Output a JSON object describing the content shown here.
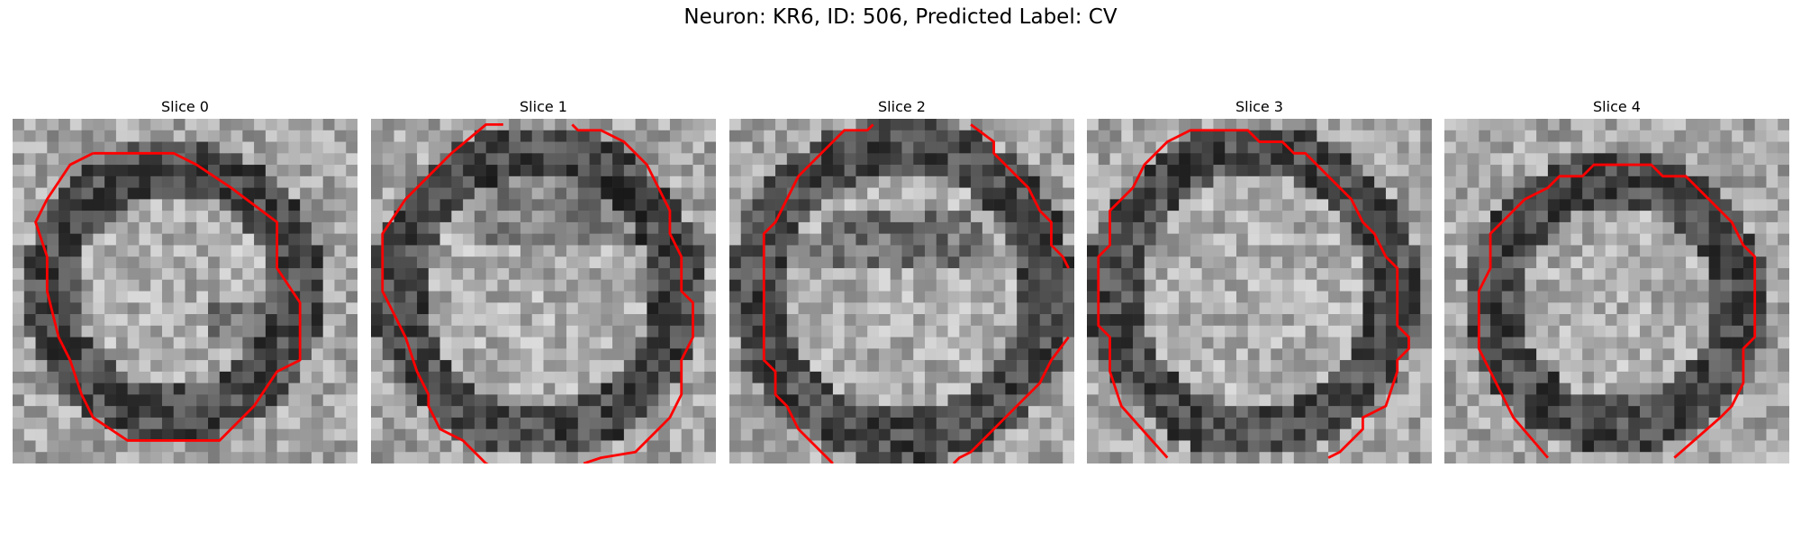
{
  "figure": {
    "title": "Neuron: KR6, ID: 506, Predicted Label: CV"
  },
  "colors": {
    "contour": "#ff0000"
  },
  "panels": [
    {
      "label": "Slice 0",
      "icon": "grayscale-slice-image"
    },
    {
      "label": "Slice 1",
      "icon": "grayscale-slice-image"
    },
    {
      "label": "Slice 2",
      "icon": "grayscale-slice-image"
    },
    {
      "label": "Slice 3",
      "icon": "grayscale-slice-image"
    },
    {
      "label": "Slice 4",
      "icon": "grayscale-slice-image"
    }
  ]
}
